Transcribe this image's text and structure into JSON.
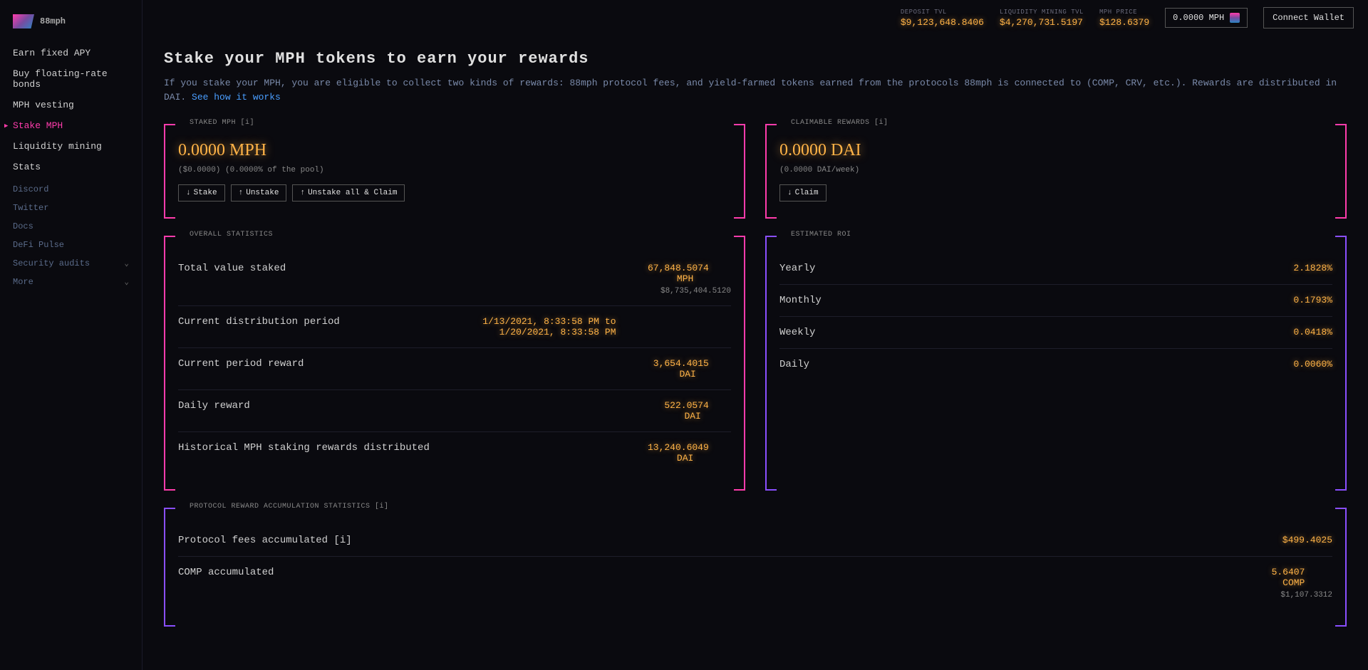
{
  "brand": "88mph",
  "nav": {
    "primary": [
      {
        "label": "Earn fixed APY",
        "active": false
      },
      {
        "label": "Buy floating-rate bonds",
        "active": false
      },
      {
        "label": "MPH vesting",
        "active": false
      },
      {
        "label": "Stake MPH",
        "active": true
      },
      {
        "label": "Liquidity mining",
        "active": false
      },
      {
        "label": "Stats",
        "active": false
      }
    ],
    "secondary": [
      {
        "label": "Discord"
      },
      {
        "label": "Twitter"
      },
      {
        "label": "Docs"
      },
      {
        "label": "DeFi Pulse"
      },
      {
        "label": "Security audits",
        "expandable": true
      },
      {
        "label": "More",
        "expandable": true
      }
    ]
  },
  "topbar": {
    "metrics": [
      {
        "label": "DEPOSIT TVL",
        "value": "$9,123,648.8406"
      },
      {
        "label": "LIQUIDITY MINING TVL",
        "value": "$4,270,731.5197"
      },
      {
        "label": "MPH PRICE",
        "value": "$128.6379"
      }
    ],
    "wallet_balance": "0.0000 MPH",
    "connect_label": "Connect Wallet"
  },
  "page": {
    "title": "Stake your MPH tokens to earn your rewards",
    "desc_prefix": "If you stake your MPH, you are eligible to collect two kinds of rewards: 88mph protocol fees, and yield-farmed tokens earned from the protocols 88mph is connected to (COMP, CRV, etc.). Rewards are distributed in DAI. ",
    "desc_link": "See how it works"
  },
  "staked": {
    "card_label": "STAKED MPH [i]",
    "value": "0.0000 MPH",
    "sub": "($0.0000) (0.0000% of the pool)",
    "btn_stake": "Stake",
    "btn_unstake": "Unstake",
    "btn_unstake_all": "Unstake all & Claim"
  },
  "claimable": {
    "card_label": "CLAIMABLE REWARDS [i]",
    "value": "0.0000 DAI",
    "sub": "(0.0000 DAI/week)",
    "btn_claim": "Claim"
  },
  "overall": {
    "card_label": "OVERALL STATISTICS",
    "rows": [
      {
        "label": "Total value staked",
        "value": "67,848.5074 MPH",
        "sub": "$8,735,404.5120"
      },
      {
        "label": "Current distribution period",
        "value": "1/13/2021, 8:33:58 PM to 1/20/2021, 8:33:58 PM"
      },
      {
        "label": "Current period reward",
        "value": "3,654.4015 DAI"
      },
      {
        "label": "Daily reward",
        "value": "522.0574 DAI"
      },
      {
        "label": "Historical MPH staking rewards distributed",
        "value": "13,240.6049 DAI"
      }
    ]
  },
  "roi": {
    "card_label": "ESTIMATED ROI",
    "rows": [
      {
        "label": "Yearly",
        "value": "2.1828%"
      },
      {
        "label": "Monthly",
        "value": "0.1793%"
      },
      {
        "label": "Weekly",
        "value": "0.0418%"
      },
      {
        "label": "Daily",
        "value": "0.0060%"
      }
    ]
  },
  "protocol": {
    "card_label": "PROTOCOL REWARD ACCUMULATION STATISTICS [i]",
    "rows": [
      {
        "label": "Protocol fees accumulated [i]",
        "value": "$499.4025"
      },
      {
        "label": "COMP accumulated",
        "value": "5.6407 COMP",
        "sub": "$1,107.3312"
      }
    ]
  }
}
